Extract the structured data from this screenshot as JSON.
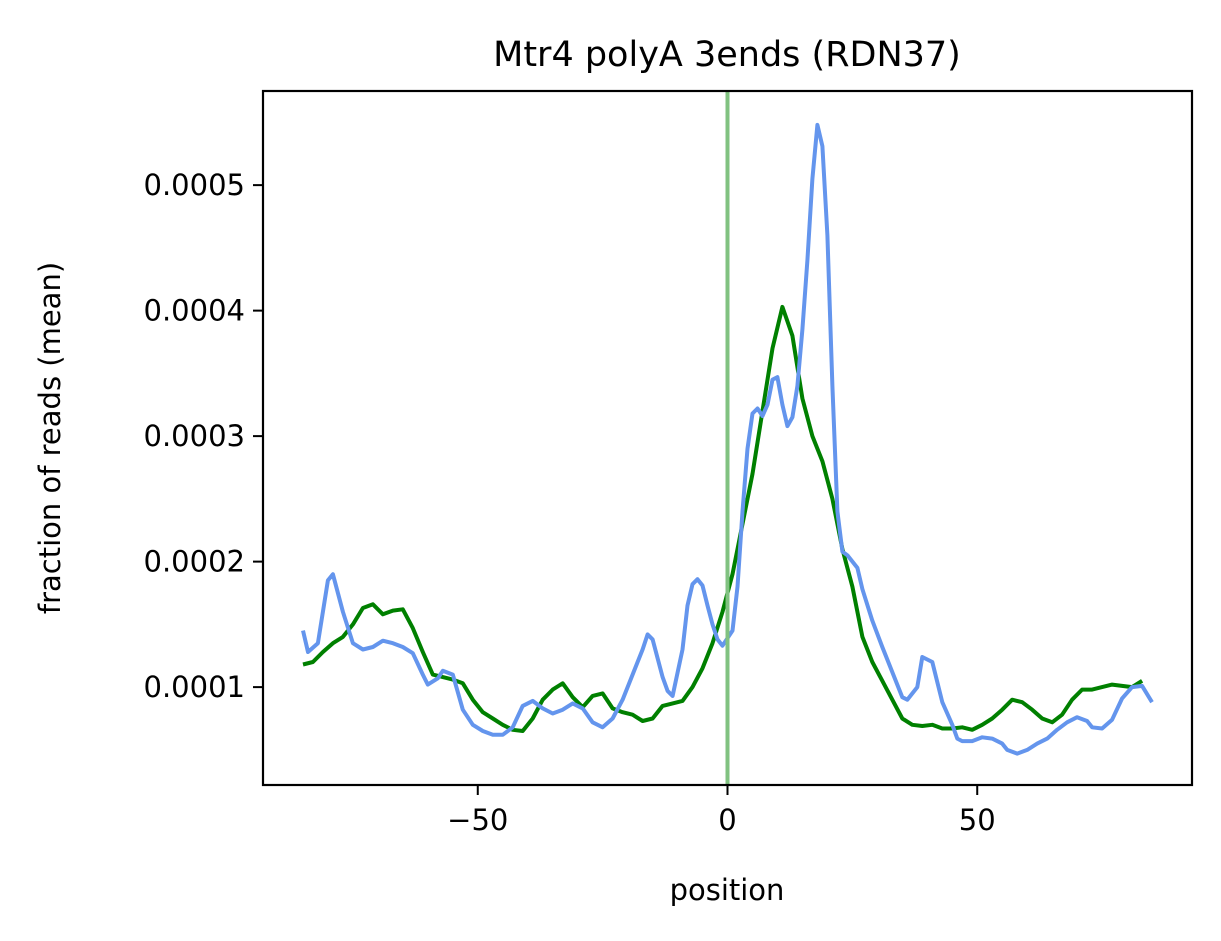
{
  "chart_data": {
    "type": "line",
    "title": "Mtr4 polyA 3ends (RDN37)",
    "xlabel": "position",
    "ylabel": "fraction of reads (mean)",
    "xlim": [
      -93,
      93
    ],
    "ylim": [
      2.2e-05,
      0.000575
    ],
    "x_ticks": [
      -50,
      0,
      50
    ],
    "x_tick_labels": [
      "−50",
      "0",
      "50"
    ],
    "y_ticks": [
      0.0001,
      0.0002,
      0.0003,
      0.0004,
      0.0005
    ],
    "y_tick_labels": [
      "0.0001",
      "0.0002",
      "0.0003",
      "0.0004",
      "0.0005"
    ],
    "grid": false,
    "legend": "none",
    "vline": {
      "x": 0,
      "color": "#81c281"
    },
    "series": [
      {
        "color": "#008000",
        "points": [
          [
            -85,
            0.000118
          ],
          [
            -83,
            0.00012
          ],
          [
            -81,
            0.000128
          ],
          [
            -79,
            0.000135
          ],
          [
            -77,
            0.00014
          ],
          [
            -75,
            0.00015
          ],
          [
            -73,
            0.000163
          ],
          [
            -71,
            0.000166
          ],
          [
            -69,
            0.000158
          ],
          [
            -67,
            0.000161
          ],
          [
            -65,
            0.000162
          ],
          [
            -63,
            0.000147
          ],
          [
            -61,
            0.000128
          ],
          [
            -59,
            0.00011
          ],
          [
            -57,
            0.000108
          ],
          [
            -55,
            0.000106
          ],
          [
            -53,
            0.000103
          ],
          [
            -51,
            9e-05
          ],
          [
            -49,
            8e-05
          ],
          [
            -47,
            7.5e-05
          ],
          [
            -45,
            7e-05
          ],
          [
            -43,
            6.6e-05
          ],
          [
            -41,
            6.5e-05
          ],
          [
            -39,
            7.5e-05
          ],
          [
            -37,
            9e-05
          ],
          [
            -35,
            9.8e-05
          ],
          [
            -33,
            0.000103
          ],
          [
            -31,
            9.2e-05
          ],
          [
            -29,
            8.4e-05
          ],
          [
            -27,
            9.3e-05
          ],
          [
            -25,
            9.5e-05
          ],
          [
            -23,
            8.3e-05
          ],
          [
            -21,
            8e-05
          ],
          [
            -19,
            7.8e-05
          ],
          [
            -17,
            7.3e-05
          ],
          [
            -15,
            7.5e-05
          ],
          [
            -13,
            8.5e-05
          ],
          [
            -11,
            8.7e-05
          ],
          [
            -9,
            8.9e-05
          ],
          [
            -7,
            0.0001
          ],
          [
            -5,
            0.000115
          ],
          [
            -3,
            0.000135
          ],
          [
            -1,
            0.00016
          ],
          [
            1,
            0.00019
          ],
          [
            3,
            0.00023
          ],
          [
            5,
            0.00027
          ],
          [
            7,
            0.00032
          ],
          [
            9,
            0.00037
          ],
          [
            11,
            0.000403
          ],
          [
            13,
            0.00038
          ],
          [
            15,
            0.00033
          ],
          [
            17,
            0.0003
          ],
          [
            19,
            0.00028
          ],
          [
            21,
            0.00025
          ],
          [
            23,
            0.00021
          ],
          [
            25,
            0.00018
          ],
          [
            27,
            0.00014
          ],
          [
            29,
            0.00012
          ],
          [
            31,
            0.000105
          ],
          [
            33,
            9e-05
          ],
          [
            35,
            7.5e-05
          ],
          [
            37,
            7e-05
          ],
          [
            39,
            6.9e-05
          ],
          [
            41,
            7e-05
          ],
          [
            43,
            6.7e-05
          ],
          [
            45,
            6.7e-05
          ],
          [
            47,
            6.8e-05
          ],
          [
            49,
            6.6e-05
          ],
          [
            51,
            7e-05
          ],
          [
            53,
            7.5e-05
          ],
          [
            55,
            8.2e-05
          ],
          [
            57,
            9e-05
          ],
          [
            59,
            8.8e-05
          ],
          [
            61,
            8.2e-05
          ],
          [
            63,
            7.5e-05
          ],
          [
            65,
            7.2e-05
          ],
          [
            67,
            7.8e-05
          ],
          [
            69,
            9e-05
          ],
          [
            71,
            9.8e-05
          ],
          [
            73,
            9.8e-05
          ],
          [
            75,
            0.0001
          ],
          [
            77,
            0.000102
          ],
          [
            79,
            0.000101
          ],
          [
            81,
            0.0001
          ],
          [
            83,
            0.000105
          ]
        ]
      },
      {
        "color": "#6495ed",
        "points": [
          [
            -85,
            0.000145
          ],
          [
            -84,
            0.000128
          ],
          [
            -82,
            0.000135
          ],
          [
            -80,
            0.000185
          ],
          [
            -79,
            0.00019
          ],
          [
            -77,
            0.00016
          ],
          [
            -75,
            0.000135
          ],
          [
            -73,
            0.00013
          ],
          [
            -71,
            0.000132
          ],
          [
            -69,
            0.000137
          ],
          [
            -67,
            0.000135
          ],
          [
            -65,
            0.000132
          ],
          [
            -63,
            0.000127
          ],
          [
            -61,
            0.00011
          ],
          [
            -60,
            0.000102
          ],
          [
            -58,
            0.000107
          ],
          [
            -57,
            0.000113
          ],
          [
            -55,
            0.00011
          ],
          [
            -53,
            8.2e-05
          ],
          [
            -51,
            7e-05
          ],
          [
            -49,
            6.5e-05
          ],
          [
            -47,
            6.2e-05
          ],
          [
            -45,
            6.2e-05
          ],
          [
            -43,
            6.8e-05
          ],
          [
            -41,
            8.5e-05
          ],
          [
            -39,
            8.9e-05
          ],
          [
            -37,
            8.3e-05
          ],
          [
            -35,
            7.9e-05
          ],
          [
            -33,
            8.2e-05
          ],
          [
            -31,
            8.7e-05
          ],
          [
            -29,
            8.3e-05
          ],
          [
            -27,
            7.2e-05
          ],
          [
            -25,
            6.8e-05
          ],
          [
            -23,
            7.5e-05
          ],
          [
            -21,
            9e-05
          ],
          [
            -19,
            0.00011
          ],
          [
            -17,
            0.00013
          ],
          [
            -16,
            0.000142
          ],
          [
            -15,
            0.000138
          ],
          [
            -13,
            0.000108
          ],
          [
            -12,
            9.7e-05
          ],
          [
            -11,
            9.3e-05
          ],
          [
            -9,
            0.00013
          ],
          [
            -8,
            0.000165
          ],
          [
            -7,
            0.000182
          ],
          [
            -6,
            0.000186
          ],
          [
            -5,
            0.000181
          ],
          [
            -4,
            0.000165
          ],
          [
            -3,
            0.00015
          ],
          [
            -2,
            0.000138
          ],
          [
            -1,
            0.000133
          ],
          [
            1,
            0.000145
          ],
          [
            2,
            0.00018
          ],
          [
            3,
            0.00024
          ],
          [
            4,
            0.00029
          ],
          [
            5,
            0.000318
          ],
          [
            6,
            0.000322
          ],
          [
            7,
            0.000316
          ],
          [
            8,
            0.000325
          ],
          [
            9,
            0.000345
          ],
          [
            10,
            0.000347
          ],
          [
            11,
            0.000325
          ],
          [
            12,
            0.000308
          ],
          [
            13,
            0.000315
          ],
          [
            14,
            0.00034
          ],
          [
            15,
            0.000385
          ],
          [
            16,
            0.00044
          ],
          [
            17,
            0.000505
          ],
          [
            18,
            0.000548
          ],
          [
            19,
            0.000531
          ],
          [
            20,
            0.00046
          ],
          [
            21,
            0.00034
          ],
          [
            22,
            0.00024
          ],
          [
            23,
            0.000208
          ],
          [
            24,
            0.000205
          ],
          [
            26,
            0.000195
          ],
          [
            27,
            0.000178
          ],
          [
            29,
            0.000153
          ],
          [
            31,
            0.000132
          ],
          [
            33,
            0.000112
          ],
          [
            35,
            9.2e-05
          ],
          [
            36,
            9e-05
          ],
          [
            38,
            0.0001
          ],
          [
            39,
            0.000124
          ],
          [
            41,
            0.00012
          ],
          [
            43,
            8.8e-05
          ],
          [
            45,
            7e-05
          ],
          [
            46,
            5.9e-05
          ],
          [
            47,
            5.7e-05
          ],
          [
            49,
            5.7e-05
          ],
          [
            51,
            6e-05
          ],
          [
            53,
            5.9e-05
          ],
          [
            55,
            5.5e-05
          ],
          [
            56,
            5e-05
          ],
          [
            58,
            4.7e-05
          ],
          [
            60,
            5e-05
          ],
          [
            62,
            5.5e-05
          ],
          [
            64,
            5.9e-05
          ],
          [
            66,
            6.6e-05
          ],
          [
            68,
            7.2e-05
          ],
          [
            70,
            7.6e-05
          ],
          [
            72,
            7.3e-05
          ],
          [
            73,
            6.8e-05
          ],
          [
            75,
            6.7e-05
          ],
          [
            77,
            7.4e-05
          ],
          [
            79,
            9.1e-05
          ],
          [
            81,
            0.0001
          ],
          [
            83,
            0.000101
          ],
          [
            85,
            8.8e-05
          ]
        ]
      }
    ]
  }
}
